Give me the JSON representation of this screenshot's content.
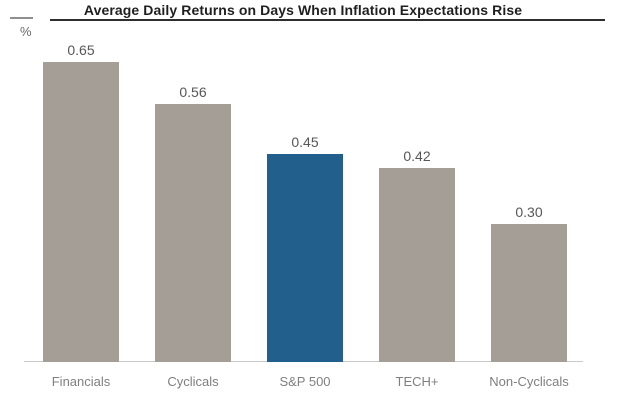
{
  "chart_data": {
    "type": "bar",
    "title": "Average Daily Returns on Days When Inflation Expectations Rise",
    "unit_label": "%",
    "categories": [
      "Financials",
      "Cyclicals",
      "S&P 500",
      "TECH+",
      "Non-Cyclicals"
    ],
    "values": [
      0.65,
      0.56,
      0.45,
      0.42,
      0.3
    ],
    "value_labels": [
      "0.65",
      "0.56",
      "0.45",
      "0.42",
      "0.30"
    ],
    "highlighted_category": "S&P 500",
    "xlabel": "",
    "ylabel": "%",
    "ylim": [
      0,
      0.7
    ],
    "grid": false,
    "legend": "none",
    "colors": {
      "bar_default": "#a59e97",
      "bar_highlight": "#235f8c",
      "title_text": "#1f1f1f",
      "title_rule": "#2e2e2e",
      "value_label": "#575757",
      "category_label": "#7f7f7f",
      "axis_line": "#c9c9c9",
      "unit_tick": "#8f8f8f"
    }
  }
}
